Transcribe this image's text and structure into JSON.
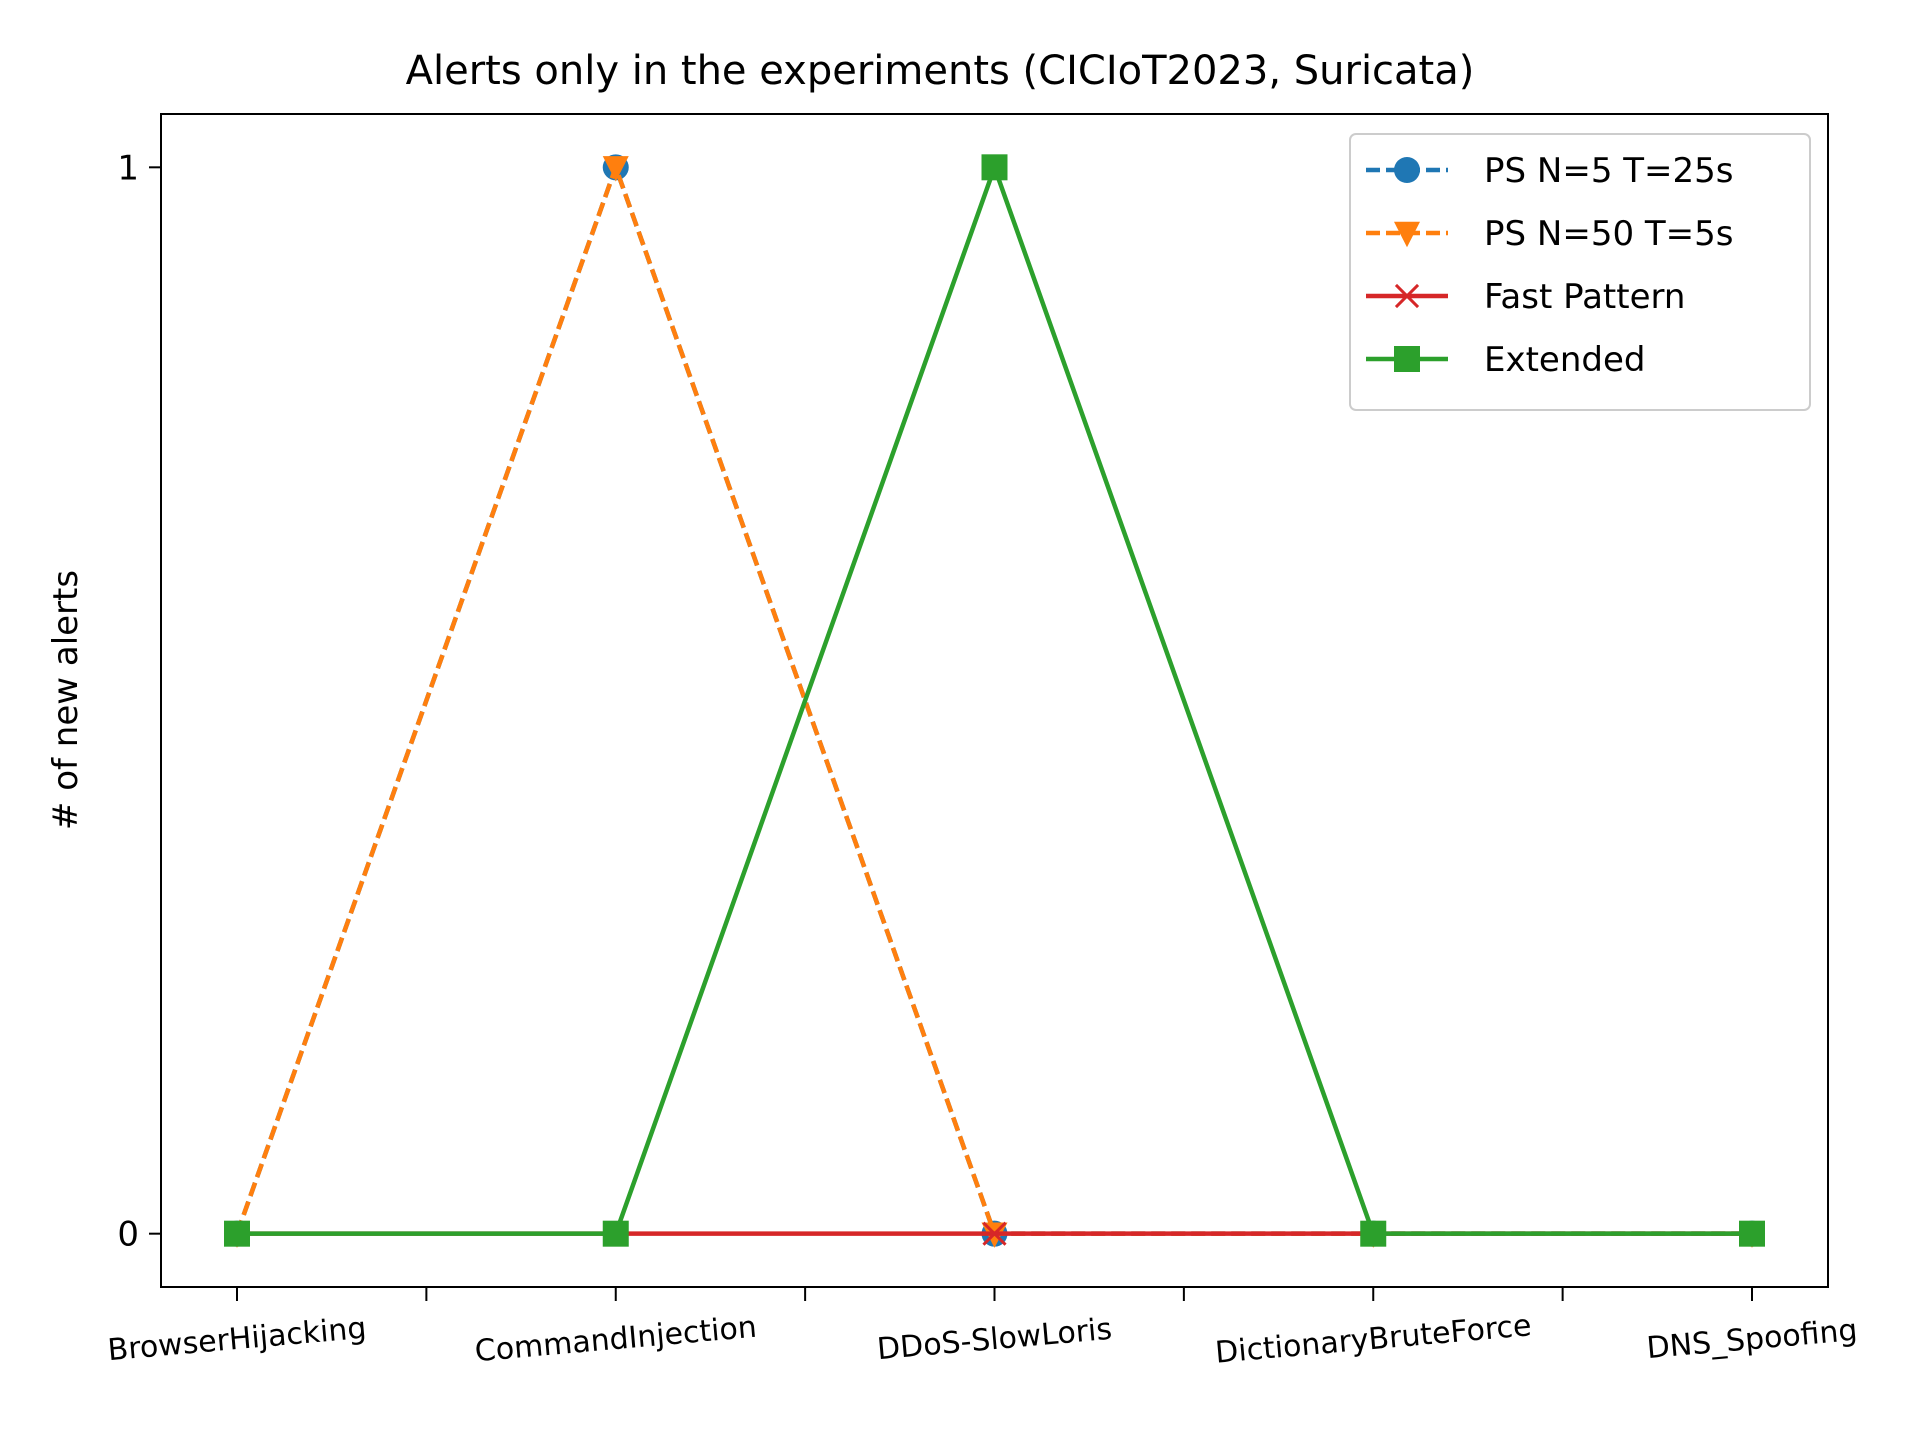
{
  "chart_data": {
    "type": "line",
    "title": "Alerts only in the experiments (CICIoT2023, Suricata)",
    "xlabel": "",
    "ylabel": "# of new alerts",
    "categories": [
      "BrowserHijacking",
      "CommandInjection",
      "DDoS-SlowLoris",
      "DictionaryBruteForce",
      "DNS_Spoofing"
    ],
    "yticks": [
      0,
      1
    ],
    "ylim": [
      -0.05,
      1.05
    ],
    "grid": false,
    "legend_position": "top-right",
    "series": [
      {
        "name": "PS N=5 T=25s",
        "values": [
          0,
          1,
          0,
          0,
          0
        ],
        "color": "#1f77b4",
        "linestyle": "dashed",
        "marker": "circle"
      },
      {
        "name": "PS N=50 T=5s",
        "values": [
          0,
          1,
          0,
          0,
          0
        ],
        "color": "#ff7f0e",
        "linestyle": "dashed",
        "marker": "triangle-down"
      },
      {
        "name": "Fast Pattern",
        "values": [
          0,
          0,
          0,
          0,
          0
        ],
        "color": "#d62728",
        "linestyle": "solid",
        "marker": "x"
      },
      {
        "name": "Extended",
        "values": [
          0,
          0,
          1,
          0,
          0
        ],
        "color": "#2ca02c",
        "linestyle": "solid",
        "marker": "square"
      }
    ]
  }
}
